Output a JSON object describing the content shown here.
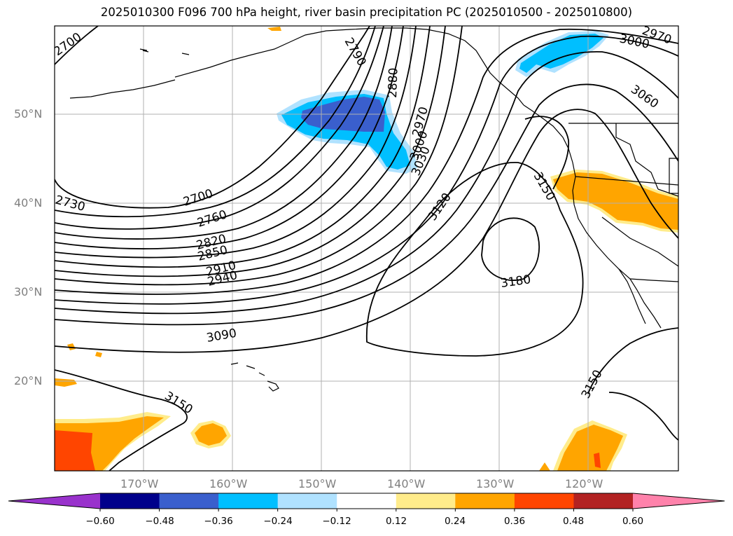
{
  "title": "2025010300 F096 700 hPa height, river basin precipitation PC (2025010500 - 2025010800)",
  "lat_labels": [
    "50°N",
    "40°N",
    "30°N",
    "20°N"
  ],
  "lon_labels": [
    "170°W",
    "160°W",
    "150°W",
    "140°W",
    "130°W",
    "120°W"
  ],
  "contour_labels": [
    "2700",
    "2790",
    "2880",
    "2970",
    "3000",
    "3030",
    "3060",
    "3000",
    "2970",
    "3150",
    "3120",
    "2700",
    "2730",
    "2760",
    "2820",
    "2850",
    "2910",
    "2940",
    "3090",
    "3180",
    "3150",
    "3150"
  ],
  "colorbar": {
    "tick_labels": [
      "−0.60",
      "−0.48",
      "−0.36",
      "−0.24",
      "−0.12",
      "0.12",
      "0.24",
      "0.36",
      "0.48",
      "0.60"
    ],
    "colors": [
      "#9932cc",
      "#00008b",
      "#3a5fcd",
      "#00bfff",
      "#b0e2ff",
      "#ffffff",
      "#ffec8b",
      "#ffa500",
      "#ff4500",
      "#b22222",
      "#ff82ab"
    ]
  }
}
